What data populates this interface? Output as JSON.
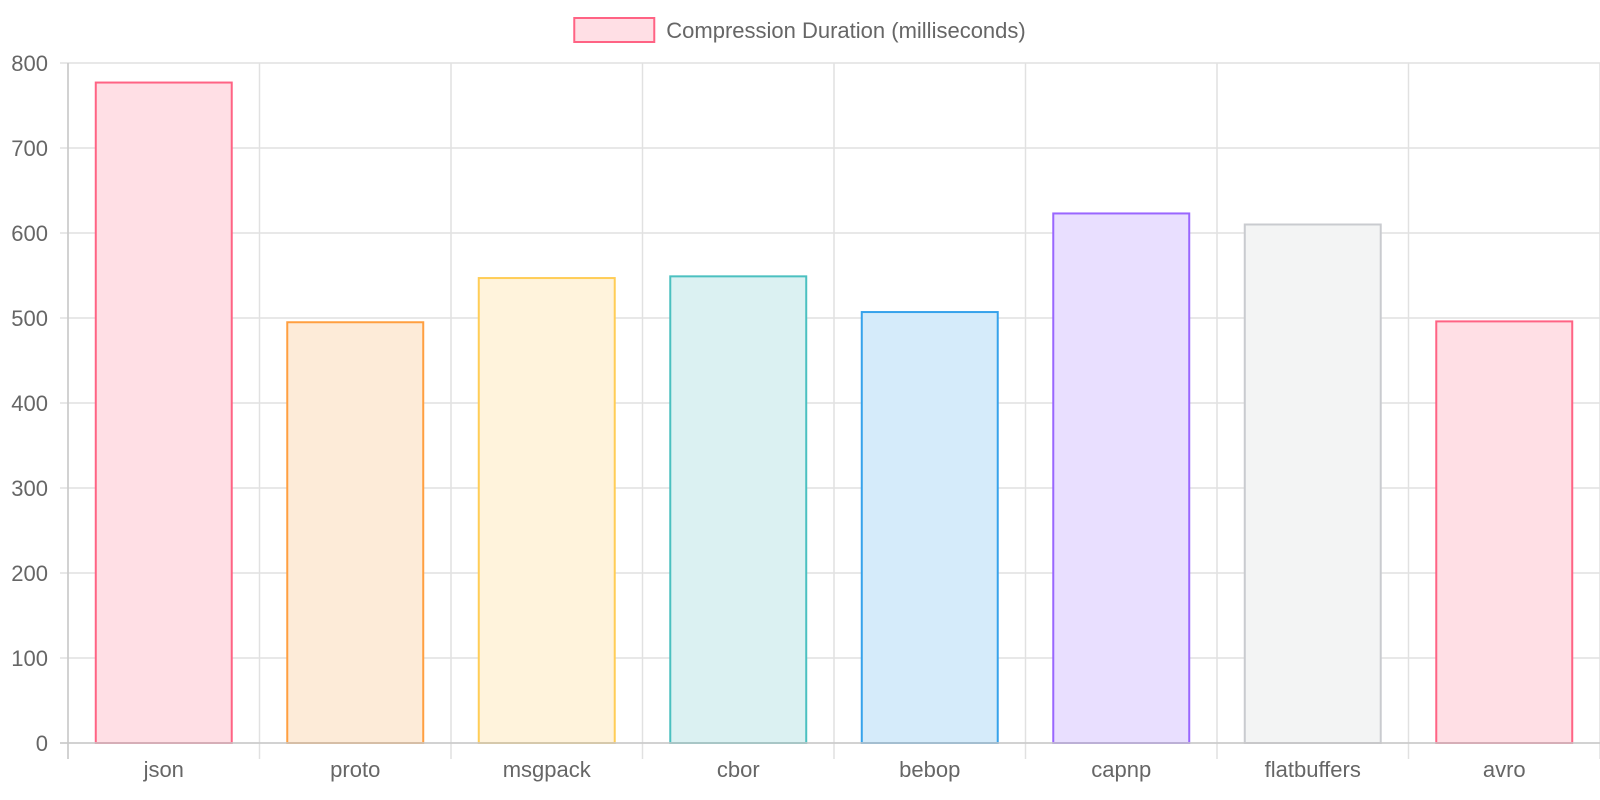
{
  "chart_data": {
    "type": "bar",
    "title": "",
    "xlabel": "",
    "ylabel": "",
    "legend": {
      "label": "Compression Duration (milliseconds)",
      "position": "top"
    },
    "categories": [
      "json",
      "proto",
      "msgpack",
      "cbor",
      "bebop",
      "capnp",
      "flatbuffers",
      "avro"
    ],
    "series": [
      {
        "name": "Compression Duration (milliseconds)",
        "values": [
          777,
          495,
          547,
          549,
          507,
          623,
          610,
          496
        ]
      }
    ],
    "ylim": [
      0,
      800
    ],
    "yticks": [
      0,
      100,
      200,
      300,
      400,
      500,
      600,
      700,
      800
    ],
    "grid": true,
    "colors": {
      "legend_fill": "#ffdfe5",
      "legend_border": "#ff6384",
      "bar_fills": [
        "#ffdfe5",
        "#fdebd8",
        "#fff3dc",
        "#dbf1f2",
        "#d5ebfa",
        "#e9dfff",
        "#f3f4f4",
        "#ffdfe5"
      ],
      "bar_borders": [
        "#ff6384",
        "#ff9f40",
        "#ffcd56",
        "#4bc0c0",
        "#36a2eb",
        "#9966ff",
        "#c9cbcf",
        "#ff6384"
      ]
    }
  }
}
